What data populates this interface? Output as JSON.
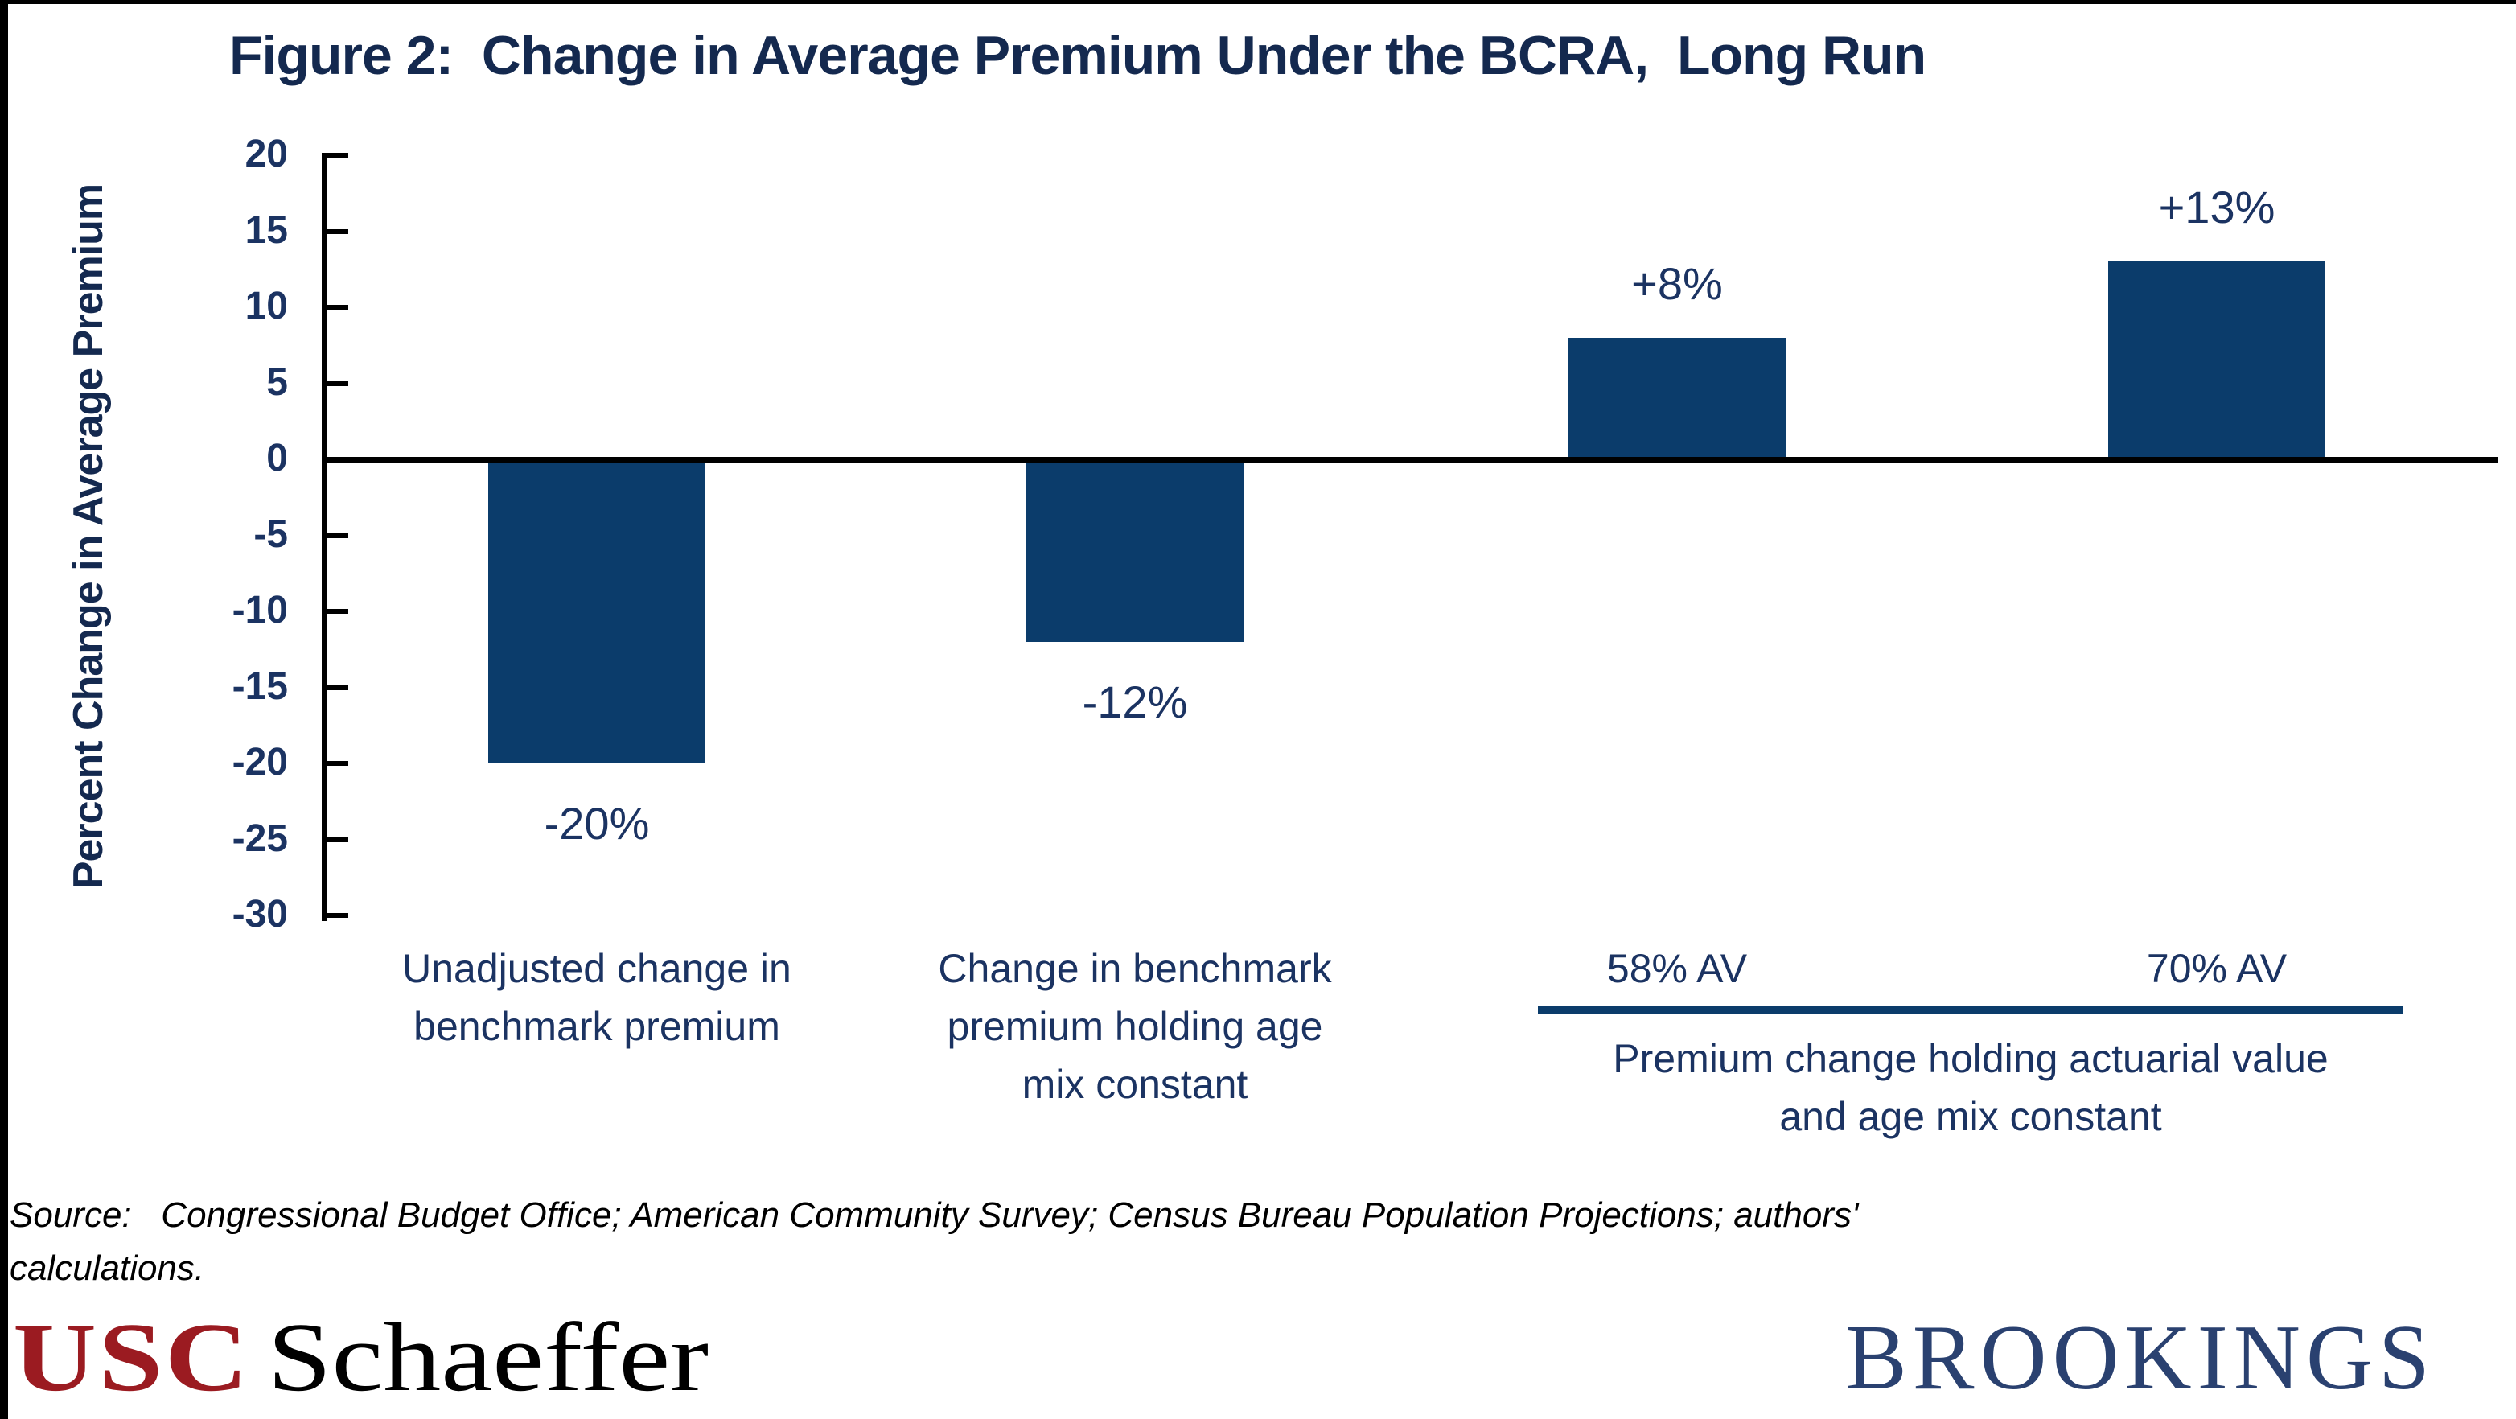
{
  "page": {
    "title": "Figure 2:  Change in Average Premium Under the BCRA,  Long Run",
    "source_line1": "Source:   Congressional Budget Office; American Community Survey; Census Bureau Population Projections; authors'",
    "source_line2": "calculations.",
    "logos": {
      "usc": "USC",
      "schaeffer": "Schaeffer",
      "brookings": "BROOKINGS"
    }
  },
  "chart_data": {
    "type": "bar",
    "title": "Figure 2:  Change in Average Premium Under the BCRA,  Long Run",
    "xlabel": "",
    "ylabel": "Percent Change in Average Premium",
    "ylim": [
      -30,
      20
    ],
    "yticks": [
      20,
      15,
      10,
      5,
      0,
      -5,
      -10,
      -15,
      -20,
      -25,
      -30
    ],
    "grid": false,
    "legend": "none",
    "bar_color": "#0B3C6B",
    "axis_color": "#000000",
    "label_color": "#1B3362",
    "values": [
      -20,
      -12,
      8,
      13
    ],
    "bar_labels": [
      "-20%",
      "-12%",
      "+8%",
      "+13%"
    ],
    "category_blocks": [
      {
        "lines": [
          "Unadjusted change in",
          "benchmark premium"
        ]
      },
      {
        "lines": [
          "Change in benchmark",
          "premium holding age",
          "mix constant"
        ]
      },
      {
        "lines": [
          "58% AV"
        ]
      },
      {
        "lines": [
          "70% AV"
        ]
      }
    ],
    "group_label": {
      "applies_to": [
        "58% AV",
        "70% AV"
      ],
      "lines": [
        "Premium change holding actuarial value",
        "and age mix constant"
      ]
    }
  }
}
